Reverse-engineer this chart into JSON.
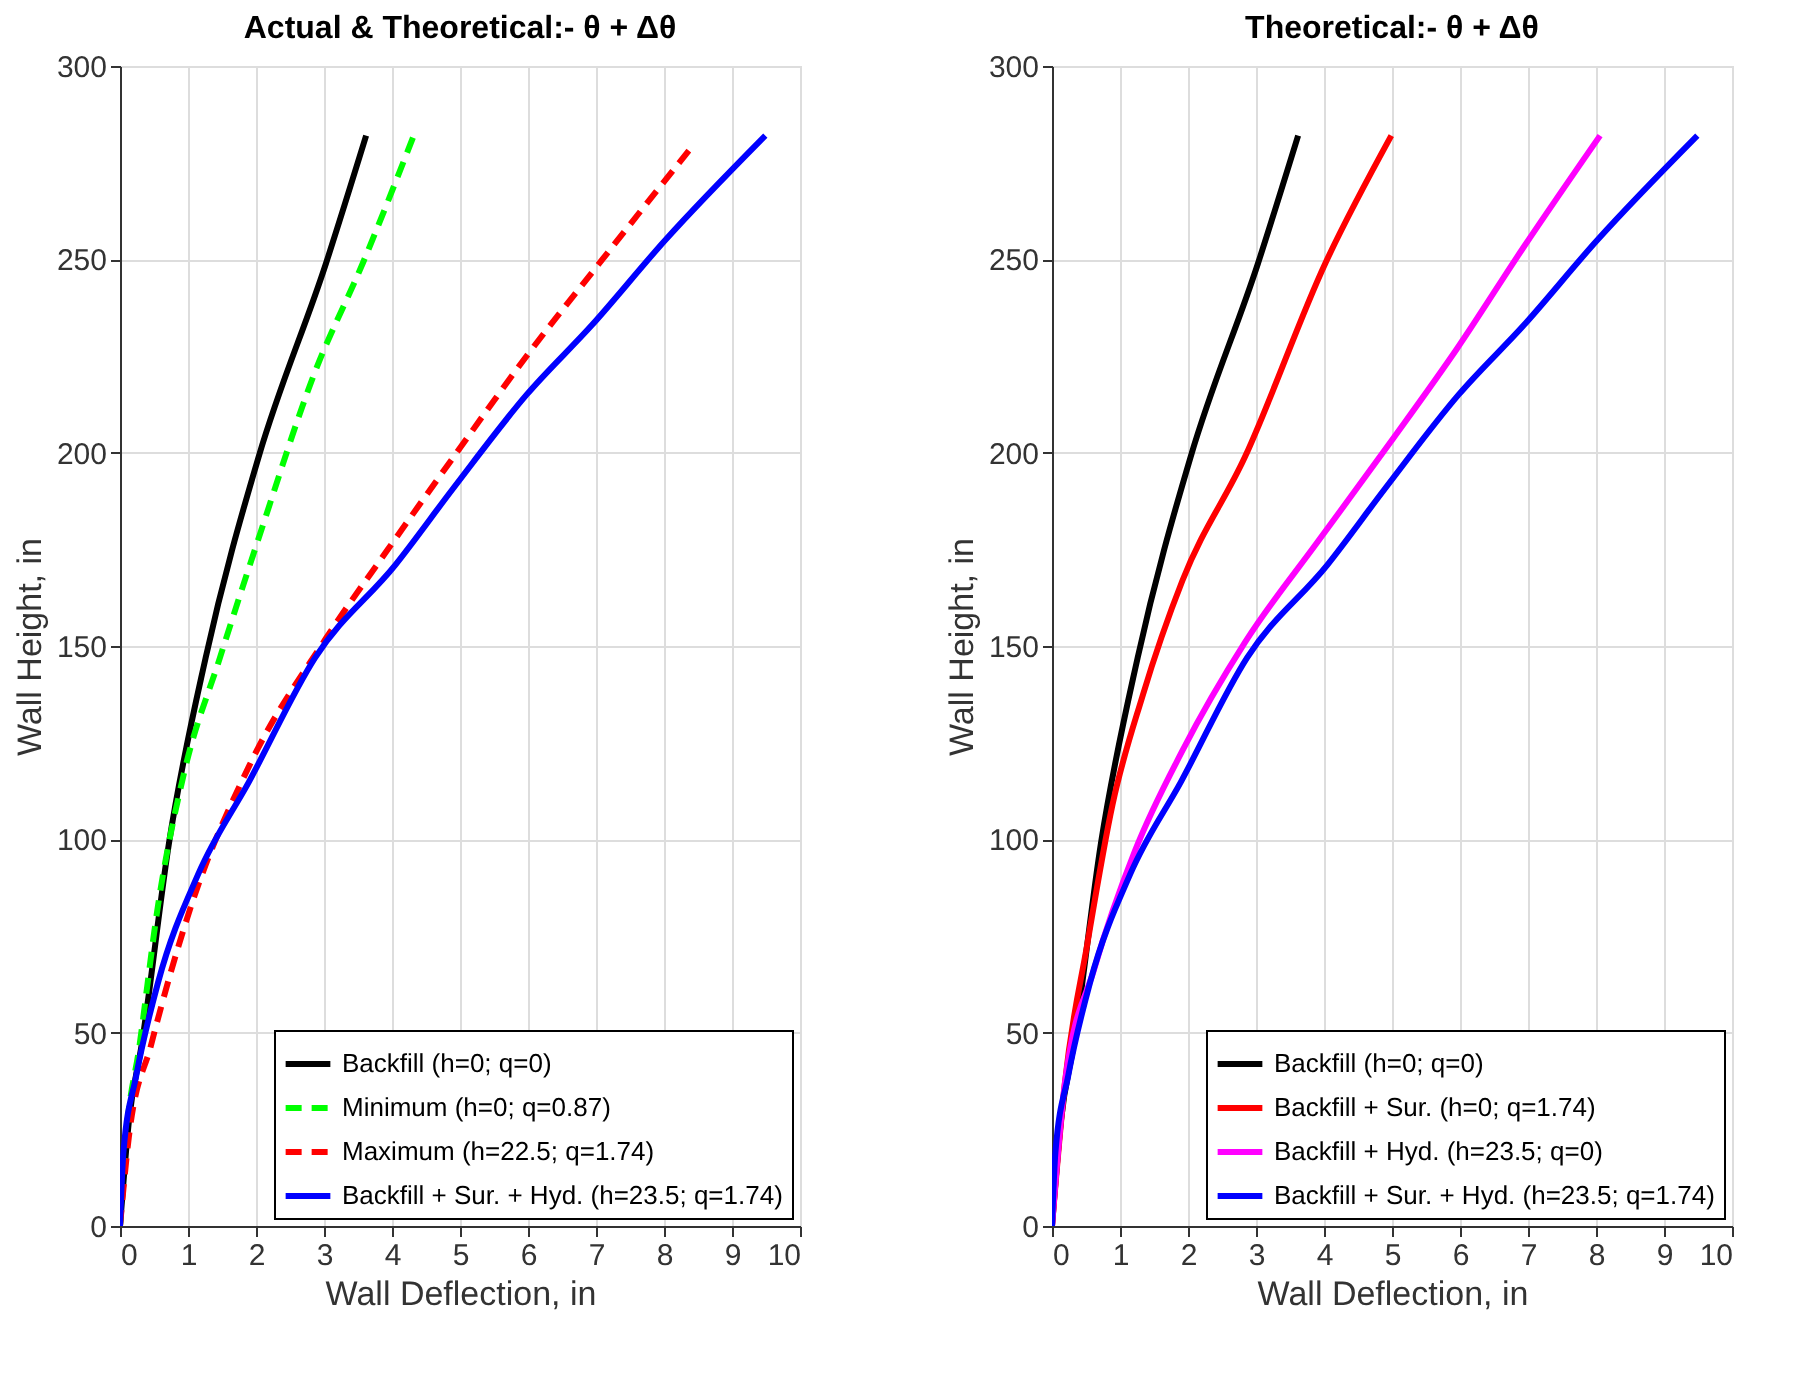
{
  "chart_data": [
    {
      "type": "line",
      "title": "Actual & Theoretical:- θ + Δθ",
      "xlabel": "Wall Deflection, in",
      "ylabel": "Wall Height, in",
      "xlim": [
        0,
        10
      ],
      "xticks": [
        0,
        1,
        2,
        3,
        4,
        5,
        6,
        7,
        8,
        9,
        10
      ],
      "ylim": [
        0,
        300
      ],
      "yticks": [
        0,
        50,
        100,
        150,
        200,
        250,
        300
      ],
      "grid": true,
      "legend": "bottom right",
      "marker": "none",
      "series": [
        {
          "name": "Backfill (h=0; q=0)",
          "color": "#000000",
          "line_style": "solid",
          "x": [
            0,
            0.13,
            0.32,
            0.72,
            1.26,
            2.04,
            3.03,
            3.62
          ],
          "values": [
            0,
            27,
            47,
            99,
            147,
            199,
            249,
            282
          ]
        },
        {
          "name": "Minimum (h=0; q=0.87)",
          "color": "#00ff00",
          "line_style": "dashed",
          "x": [
            0,
            0.08,
            0.29,
            0.56,
            0.94,
            1.47,
            2.06,
            2.87,
            3.57,
            4.32
          ],
          "values": [
            0,
            21,
            47,
            83,
            117,
            147,
            179,
            221,
            249,
            282
          ]
        },
        {
          "name": "Maximum (h=22.5; q=1.74)",
          "color": "#ff0000",
          "line_style": "dashed",
          "x": [
            0,
            0.13,
            0.46,
            1.05,
            1.9,
            3.03,
            3.94,
            4.91,
            5.98,
            7.05,
            8.45
          ],
          "values": [
            0,
            23,
            47,
            83,
            119,
            152,
            175,
            199,
            225,
            249,
            280
          ]
        },
        {
          "name": "Backfill + Sur. + Hyd. (h=23.5; q=1.74)",
          "color": "#0000ff",
          "line_style": "solid",
          "x": [
            0,
            0.05,
            0.24,
            0.56,
            1.15,
            1.9,
            2.87,
            4.05,
            4.91,
            5.98,
            6.94,
            8.02,
            9.49
          ],
          "values": [
            0,
            19,
            39,
            63,
            91,
            115,
            147,
            171,
            191,
            215,
            233,
            255,
            282
          ]
        }
      ]
    },
    {
      "type": "line",
      "title": "Theoretical:- θ + Δθ",
      "xlabel": "Wall Deflection, in",
      "ylabel": "Wall Height, in",
      "xlim": [
        0,
        10
      ],
      "xticks": [
        0,
        1,
        2,
        3,
        4,
        5,
        6,
        7,
        8,
        9,
        10
      ],
      "ylim": [
        0,
        300
      ],
      "yticks": [
        0,
        50,
        100,
        150,
        200,
        250,
        300
      ],
      "grid": true,
      "legend": "bottom right",
      "marker": "none",
      "series": [
        {
          "name": "Backfill (h=0; q=0)",
          "color": "#000000",
          "line_style": "solid",
          "x": [
            0,
            0.13,
            0.32,
            0.72,
            1.26,
            2.04,
            3.03,
            3.62
          ],
          "values": [
            0,
            27,
            47,
            99,
            147,
            199,
            249,
            282
          ]
        },
        {
          "name": "Backfill + Sur. (h=0; q=1.74)",
          "color": "#ff0000",
          "line_style": "solid",
          "x": [
            0,
            0.19,
            0.52,
            0.89,
            1.33,
            1.92,
            2.84,
            4.02,
            4.99
          ],
          "values": [
            0,
            37,
            73,
            109,
            137,
            167,
            199,
            249,
            282
          ]
        },
        {
          "name": "Backfill + Hyd. (h=23.5; q=0)",
          "color": "#ff00ff",
          "line_style": "solid",
          "x": [
            0,
            0.19,
            0.63,
            1.22,
            1.92,
            2.84,
            3.91,
            4.99,
            5.96,
            6.93,
            8.06
          ],
          "values": [
            0,
            37,
            67,
            97,
            123,
            151,
            177,
            203,
            227,
            253,
            282
          ]
        },
        {
          "name": "Backfill + Sur. + Hyd. (h=23.5; q=1.74)",
          "color": "#0000ff",
          "line_style": "solid",
          "x": [
            0,
            0.05,
            0.24,
            0.56,
            1.15,
            1.9,
            2.87,
            4.05,
            4.91,
            5.98,
            6.94,
            8.02,
            9.49
          ],
          "values": [
            0,
            19,
            39,
            63,
            91,
            115,
            147,
            171,
            191,
            215,
            233,
            255,
            282
          ]
        }
      ]
    }
  ]
}
